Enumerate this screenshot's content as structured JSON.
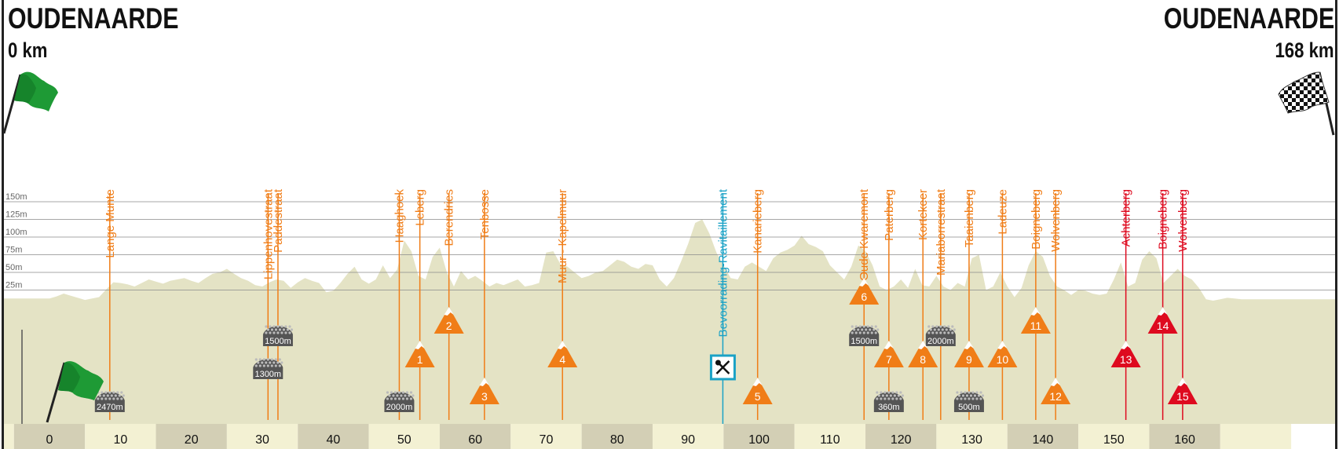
{
  "header": {
    "start_city": "OUDENAARDE",
    "start_km": "0 km",
    "finish_city": "OUDENAARDE",
    "finish_km": "168 km"
  },
  "colors": {
    "terrain": "#e4e3c5",
    "axis_band_light": "#f3f1d3",
    "axis_band_dark": "#d3cfb5",
    "climb": "#f07d17",
    "climb_final": "#de0a1f",
    "feed": "#1aa2c6",
    "grid": "#8a8a8a",
    "cobble": "#555555"
  },
  "chart_data": {
    "type": "area",
    "x_ticks": [
      0,
      10,
      20,
      30,
      40,
      50,
      60,
      70,
      80,
      90,
      100,
      110,
      120,
      130,
      140,
      150,
      160
    ],
    "xlim": [
      0,
      168
    ],
    "y_ticks": [
      "25m",
      "50m",
      "75m",
      "100m",
      "125m",
      "150m"
    ],
    "y_tick_values": [
      25,
      50,
      75,
      100,
      125,
      150
    ],
    "ylim": [
      0,
      150
    ],
    "grid": true,
    "series": [
      {
        "x": [
          0,
          1,
          2,
          3,
          4,
          5,
          6,
          7,
          8,
          9,
          10,
          11,
          12,
          13,
          14,
          15,
          16,
          17,
          18,
          19,
          20,
          21,
          22,
          23,
          24,
          25,
          26,
          27,
          28,
          29,
          30,
          31,
          32,
          33,
          34,
          35,
          36,
          37,
          38,
          39,
          40,
          41,
          42,
          43,
          44,
          45,
          46,
          47,
          48,
          49,
          50,
          51,
          52,
          53,
          54,
          55,
          56,
          57,
          58,
          59,
          60,
          61,
          62,
          63,
          64,
          65,
          66,
          67,
          68,
          69,
          70,
          71,
          72,
          73,
          74,
          75,
          76,
          77,
          78,
          79,
          80,
          81,
          82,
          83,
          84,
          85,
          86,
          87,
          88,
          89,
          90,
          91,
          92,
          93,
          94,
          95,
          96,
          97,
          98,
          99,
          100,
          101,
          102,
          103,
          104,
          105,
          106,
          107,
          108,
          109,
          110,
          111,
          112,
          113,
          114,
          115,
          116,
          117,
          118,
          119,
          120,
          121,
          122,
          123,
          124,
          125,
          126,
          127,
          128,
          129,
          130,
          131,
          132,
          133,
          134,
          135,
          136,
          137,
          138,
          139,
          140,
          141,
          142,
          143,
          144,
          145,
          146,
          147,
          148,
          149,
          150,
          151,
          152,
          153,
          154,
          155,
          156,
          157,
          158,
          159,
          160,
          161,
          162,
          163,
          164,
          165,
          166,
          167,
          168
        ],
        "y": [
          13,
          16,
          20,
          17,
          14,
          11,
          13,
          15,
          26,
          36,
          35,
          33,
          30,
          35,
          40,
          37,
          34,
          38,
          40,
          42,
          38,
          35,
          42,
          48,
          50,
          55,
          48,
          42,
          38,
          32,
          30,
          36,
          40,
          38,
          28,
          36,
          42,
          38,
          35,
          22,
          24,
          35,
          48,
          58,
          40,
          34,
          40,
          60,
          42,
          54,
          95,
          80,
          45,
          40,
          72,
          85,
          50,
          30,
          52,
          40,
          45,
          38,
          30,
          35,
          32,
          36,
          40,
          30,
          32,
          35,
          78,
          80,
          62,
          58,
          50,
          42,
          45,
          50,
          52,
          60,
          68,
          65,
          58,
          55,
          62,
          60,
          40,
          30,
          42,
          65,
          90,
          120,
          125,
          105,
          78,
          60,
          42,
          40,
          58,
          64,
          58,
          52,
          70,
          78,
          82,
          88,
          102,
          90,
          86,
          80,
          60,
          50,
          40,
          58,
          88,
          80,
          60,
          30,
          25,
          30,
          40,
          28,
          55,
          32,
          30,
          45,
          30,
          25,
          35,
          30,
          70,
          75,
          25,
          30,
          50,
          30,
          15,
          28,
          60,
          80,
          72,
          45,
          30,
          25,
          18,
          25,
          24,
          20,
          18,
          20,
          40,
          64,
          30,
          35,
          68,
          80,
          70,
          35,
          45,
          55,
          45,
          40,
          28,
          12,
          10,
          12,
          14,
          13,
          12
        ]
      }
    ],
    "markers": [
      {
        "name": "Lange Munte",
        "km": 8.5,
        "kind": "climb"
      },
      {
        "name": "Lippenhovestraat",
        "km": 30.8,
        "kind": "climb"
      },
      {
        "name": "Paddestraat",
        "km": 32.2,
        "kind": "climb"
      },
      {
        "name": "Haaghoek",
        "km": 49.3,
        "kind": "climb"
      },
      {
        "name": "Leberg",
        "km": 52.2,
        "kind": "climb"
      },
      {
        "name": "Berendries",
        "km": 56.3,
        "kind": "climb"
      },
      {
        "name": "Tenbosse",
        "km": 61.3,
        "kind": "climb"
      },
      {
        "name": "Muur - Kapelmuur",
        "km": 72.3,
        "kind": "climb"
      },
      {
        "name": "Bevoorrading-Ravitaillement",
        "km": 94.9,
        "kind": "feed"
      },
      {
        "name": "Kanarieberg",
        "km": 99.8,
        "kind": "climb"
      },
      {
        "name": "Oude Kwaremont",
        "km": 114.8,
        "kind": "climb"
      },
      {
        "name": "Paterberg",
        "km": 118.3,
        "kind": "climb"
      },
      {
        "name": "Kortekeer",
        "km": 123.1,
        "kind": "climb"
      },
      {
        "name": "Mariaborrestraat",
        "km": 125.6,
        "kind": "climb"
      },
      {
        "name": "Taaienberg",
        "km": 129.6,
        "kind": "climb"
      },
      {
        "name": "Ladeuze",
        "km": 134.3,
        "kind": "climb"
      },
      {
        "name": "Boigneberg",
        "km": 139.0,
        "kind": "climb"
      },
      {
        "name": "Wolvenberg",
        "km": 141.8,
        "kind": "climb"
      },
      {
        "name": "Achterberg",
        "km": 151.7,
        "kind": "final"
      },
      {
        "name": "Boigneberg",
        "km": 156.9,
        "kind": "final"
      },
      {
        "name": "Wolvenberg",
        "km": 159.7,
        "kind": "final"
      }
    ],
    "climb_badges": [
      {
        "number": "1",
        "km": 52.2,
        "row": 2,
        "kind": "climb"
      },
      {
        "number": "2",
        "km": 56.3,
        "row": 1,
        "kind": "climb"
      },
      {
        "number": "3",
        "km": 61.3,
        "row": 3,
        "kind": "climb"
      },
      {
        "number": "4",
        "km": 72.3,
        "row": 2,
        "kind": "climb"
      },
      {
        "number": "5",
        "km": 99.8,
        "row": 3,
        "kind": "climb"
      },
      {
        "number": "6",
        "km": 114.8,
        "row": 0,
        "kind": "climb"
      },
      {
        "number": "7",
        "km": 118.3,
        "row": 2,
        "kind": "climb"
      },
      {
        "number": "8",
        "km": 123.1,
        "row": 2,
        "kind": "climb"
      },
      {
        "number": "9",
        "km": 129.6,
        "row": 2,
        "kind": "climb"
      },
      {
        "number": "10",
        "km": 134.3,
        "row": 2,
        "kind": "climb"
      },
      {
        "number": "11",
        "km": 139.0,
        "row": 1,
        "kind": "climb"
      },
      {
        "number": "12",
        "km": 141.8,
        "row": 3,
        "kind": "climb"
      },
      {
        "number": "13",
        "km": 151.7,
        "row": 2,
        "kind": "final"
      },
      {
        "number": "14",
        "km": 156.9,
        "row": 1,
        "kind": "final"
      },
      {
        "number": "15",
        "km": 159.7,
        "row": 3,
        "kind": "final"
      }
    ],
    "cobble_sectors": [
      {
        "length": "2470m",
        "km": 8.5,
        "row": 3
      },
      {
        "length": "1500m",
        "km": 32.2,
        "row": 1
      },
      {
        "length": "1300m",
        "km": 30.8,
        "row": 2
      },
      {
        "length": "2000m",
        "km": 49.3,
        "row": 3
      },
      {
        "length": "1500m",
        "km": 114.8,
        "row": 1
      },
      {
        "length": "360m",
        "km": 118.3,
        "row": 3
      },
      {
        "length": "2000m",
        "km": 125.6,
        "row": 1
      },
      {
        "length": "500m",
        "km": 129.6,
        "row": 3
      }
    ],
    "feed_zone": {
      "km": 94.9,
      "icon": "fork-knife-icon"
    }
  }
}
